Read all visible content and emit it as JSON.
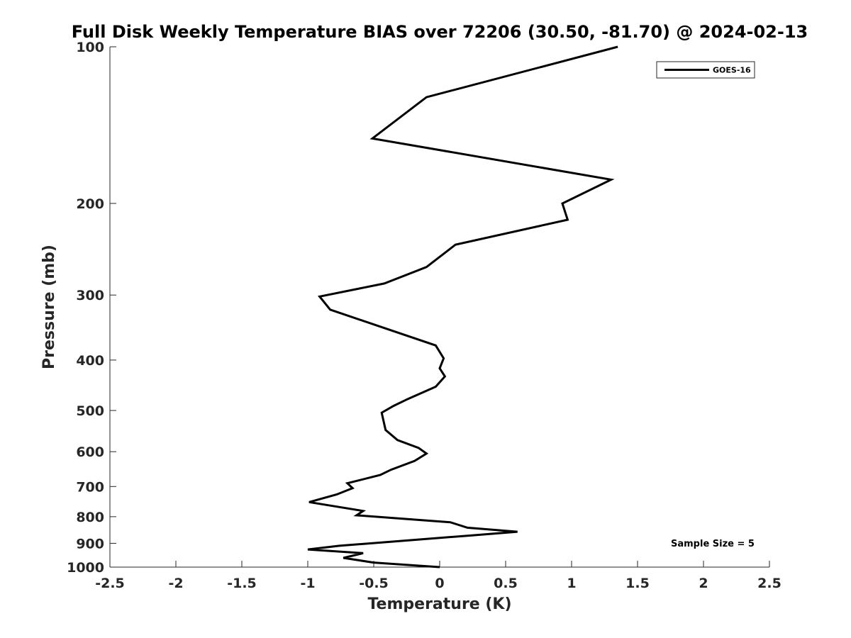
{
  "chart_data": {
    "type": "line",
    "title": "Full Disk Weekly Temperature BIAS over 72206 (30.50, -81.70) @ 2024-02-13",
    "xlabel": "Temperature (K)",
    "ylabel": "Pressure (mb)",
    "xlim": [
      -2.5,
      2.5
    ],
    "ylim": [
      100,
      1000
    ],
    "y_scale": "log",
    "y_reversed": true,
    "x_ticks": [
      -2.5,
      -2,
      -1.5,
      -1,
      -0.5,
      0,
      0.5,
      1,
      1.5,
      2,
      2.5
    ],
    "x_tick_labels": [
      "-2.5",
      "-2",
      "-1.5",
      "-1",
      "-0.5",
      "0",
      "0.5",
      "1",
      "1.5",
      "2",
      "2.5"
    ],
    "y_ticks": [
      100,
      200,
      300,
      400,
      500,
      600,
      700,
      800,
      900,
      1000
    ],
    "y_tick_labels": [
      "100",
      "200",
      "300",
      "400",
      "500",
      "600",
      "700",
      "800",
      "900",
      "1000"
    ],
    "grid": false,
    "legend_position": "top-right",
    "annotation": "Sample Size = 5",
    "series": [
      {
        "name": "GOES-16",
        "color": "#000000",
        "points": [
          {
            "t": 1.35,
            "p": 100
          },
          {
            "t": -0.1,
            "p": 125
          },
          {
            "t": -0.51,
            "p": 150
          },
          {
            "t": 1.3,
            "p": 180
          },
          {
            "t": 0.93,
            "p": 200
          },
          {
            "t": 0.97,
            "p": 215
          },
          {
            "t": 0.12,
            "p": 240
          },
          {
            "t": -0.1,
            "p": 265
          },
          {
            "t": -0.42,
            "p": 285
          },
          {
            "t": -0.91,
            "p": 302
          },
          {
            "t": -0.83,
            "p": 320
          },
          {
            "t": -0.45,
            "p": 345
          },
          {
            "t": -0.03,
            "p": 375
          },
          {
            "t": 0.03,
            "p": 397
          },
          {
            "t": 0.0,
            "p": 415
          },
          {
            "t": 0.04,
            "p": 430
          },
          {
            "t": -0.03,
            "p": 450
          },
          {
            "t": -0.24,
            "p": 475
          },
          {
            "t": -0.35,
            "p": 490
          },
          {
            "t": -0.44,
            "p": 505
          },
          {
            "t": -0.41,
            "p": 545
          },
          {
            "t": -0.32,
            "p": 570
          },
          {
            "t": -0.16,
            "p": 590
          },
          {
            "t": -0.1,
            "p": 605
          },
          {
            "t": -0.19,
            "p": 625
          },
          {
            "t": -0.37,
            "p": 650
          },
          {
            "t": -0.45,
            "p": 665
          },
          {
            "t": -0.7,
            "p": 690
          },
          {
            "t": -0.66,
            "p": 705
          },
          {
            "t": -0.78,
            "p": 725
          },
          {
            "t": -0.99,
            "p": 750
          },
          {
            "t": -0.58,
            "p": 780
          },
          {
            "t": -0.63,
            "p": 795
          },
          {
            "t": 0.08,
            "p": 820
          },
          {
            "t": 0.21,
            "p": 840
          },
          {
            "t": 0.59,
            "p": 855
          },
          {
            "t": 0.22,
            "p": 870
          },
          {
            "t": -0.76,
            "p": 910
          },
          {
            "t": -1.0,
            "p": 925
          },
          {
            "t": -0.58,
            "p": 940
          },
          {
            "t": -0.73,
            "p": 960
          },
          {
            "t": -0.5,
            "p": 980
          },
          {
            "t": 0.0,
            "p": 1000
          }
        ]
      }
    ]
  }
}
